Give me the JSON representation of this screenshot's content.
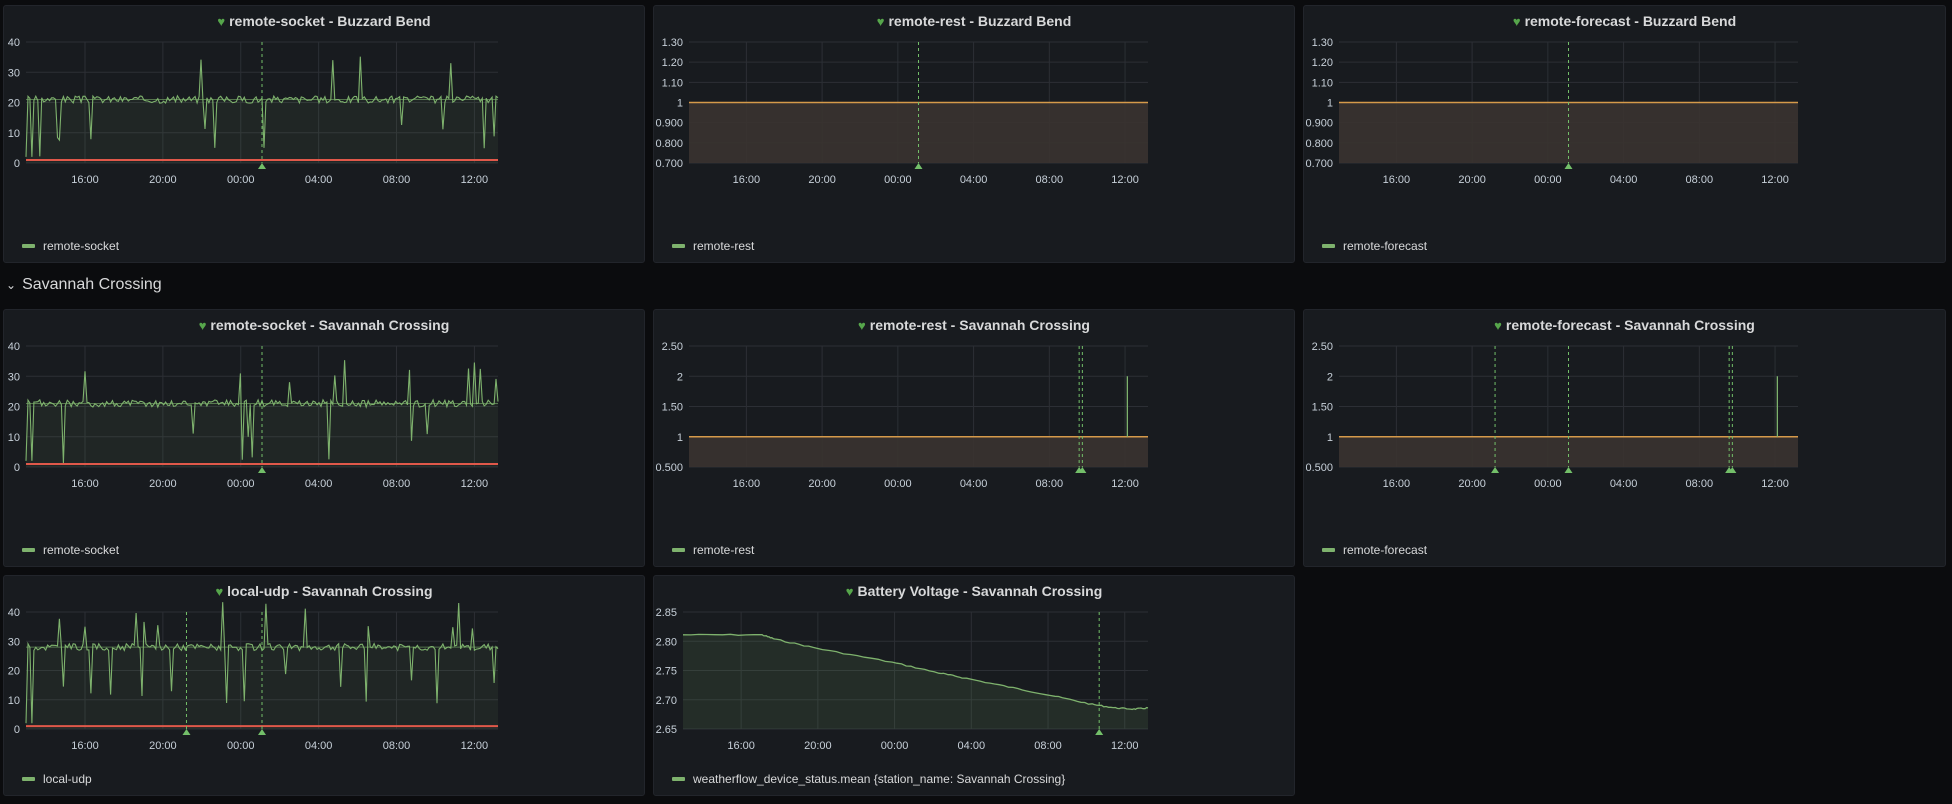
{
  "colors": {
    "series": "#7eb26d",
    "threshold_red": "#e0584a",
    "threshold_orange": "#d59a4a",
    "annotation": "#73bf69",
    "grid": "#2c2f35",
    "axis_text": "#c7d0d9"
  },
  "row": {
    "title": "Savannah Crossing"
  },
  "x_ticks": [
    "16:00",
    "20:00",
    "00:00",
    "04:00",
    "08:00",
    "12:00"
  ],
  "panels": [
    {
      "id": "p1",
      "title": "remote-socket - Buzzard Bend",
      "legend": "remote-socket",
      "chart_data": {
        "type": "line",
        "ylim": [
          0,
          40
        ],
        "yticks": [
          "0",
          "10",
          "20",
          "30",
          "40"
        ],
        "yvals": [
          0,
          10,
          20,
          30,
          40
        ],
        "baseline": 21,
        "threshold": 1,
        "pattern": "socket",
        "annotations": [
          0.5
        ]
      }
    },
    {
      "id": "p2",
      "title": "remote-rest - Buzzard Bend",
      "legend": "remote-rest",
      "chart_data": {
        "type": "line",
        "ylim": [
          0.7,
          1.3
        ],
        "yticks": [
          "0.700",
          "0.800",
          "0.900",
          "1",
          "1.10",
          "1.20",
          "1.30"
        ],
        "yvals": [
          0.7,
          0.8,
          0.9,
          1,
          1.1,
          1.2,
          1.3
        ],
        "baseline": 1,
        "pattern": "flat",
        "annotations": [
          0.5
        ]
      }
    },
    {
      "id": "p3",
      "title": "remote-forecast - Buzzard Bend",
      "legend": "remote-forecast",
      "chart_data": {
        "type": "line",
        "ylim": [
          0.7,
          1.3
        ],
        "yticks": [
          "0.700",
          "0.800",
          "0.900",
          "1",
          "1.10",
          "1.20",
          "1.30"
        ],
        "yvals": [
          0.7,
          0.8,
          0.9,
          1,
          1.1,
          1.2,
          1.3
        ],
        "baseline": 1,
        "pattern": "flat",
        "annotations": [
          0.5
        ]
      }
    },
    {
      "id": "p4",
      "title": "remote-socket - Savannah Crossing",
      "legend": "remote-socket",
      "chart_data": {
        "type": "line",
        "ylim": [
          0,
          40
        ],
        "yticks": [
          "0",
          "10",
          "20",
          "30",
          "40"
        ],
        "yvals": [
          0,
          10,
          20,
          30,
          40
        ],
        "baseline": 21,
        "threshold": 1,
        "pattern": "socket2",
        "annotations": [
          0.5
        ]
      }
    },
    {
      "id": "p5",
      "title": "remote-rest - Savannah Crossing",
      "legend": "remote-rest",
      "chart_data": {
        "type": "line",
        "ylim": [
          0.5,
          2.5
        ],
        "yticks": [
          "0.500",
          "1",
          "1.50",
          "2",
          "2.50"
        ],
        "yvals": [
          0.5,
          1,
          1.5,
          2,
          2.5
        ],
        "baseline": 1,
        "pattern": "spike",
        "spike": [
          0.955,
          2
        ],
        "annotations": [
          0.85,
          0.857
        ]
      }
    },
    {
      "id": "p6",
      "title": "remote-forecast - Savannah Crossing",
      "legend": "remote-forecast",
      "chart_data": {
        "type": "line",
        "ylim": [
          0.5,
          2.5
        ],
        "yticks": [
          "0.500",
          "1",
          "1.50",
          "2",
          "2.50"
        ],
        "yvals": [
          0.5,
          1,
          1.5,
          2,
          2.5
        ],
        "baseline": 1,
        "pattern": "spike",
        "spike": [
          0.955,
          2
        ],
        "annotations": [
          0.34,
          0.5,
          0.85,
          0.857
        ]
      }
    },
    {
      "id": "p7",
      "title": "local-udp - Savannah Crossing",
      "legend": "local-udp",
      "chart_data": {
        "type": "line",
        "ylim": [
          0,
          40
        ],
        "yticks": [
          "0",
          "10",
          "20",
          "30",
          "40"
        ],
        "yvals": [
          0,
          10,
          20,
          30,
          40
        ],
        "baseline": 28,
        "threshold": 1,
        "pattern": "udp",
        "annotations": [
          0.34,
          0.5
        ]
      }
    },
    {
      "id": "p8",
      "title": "Battery Voltage - Savannah Crossing",
      "legend": "weatherflow_device_status.mean {station_name: Savannah Crossing}",
      "chart_data": {
        "type": "line",
        "ylim": [
          2.65,
          2.85
        ],
        "yticks": [
          "2.65",
          "2.70",
          "2.75",
          "2.80",
          "2.85"
        ],
        "yvals": [
          2.65,
          2.7,
          2.75,
          2.8,
          2.85
        ],
        "pattern": "battery",
        "points": [
          [
            0,
            2.811
          ],
          [
            0.17,
            2.811
          ],
          [
            0.2,
            2.803
          ],
          [
            0.3,
            2.786
          ],
          [
            0.45,
            2.764
          ],
          [
            0.55,
            2.746
          ],
          [
            0.6,
            2.738
          ],
          [
            0.7,
            2.722
          ],
          [
            0.8,
            2.706
          ],
          [
            0.88,
            2.692
          ],
          [
            0.93,
            2.686
          ],
          [
            0.97,
            2.684
          ],
          [
            1,
            2.686
          ]
        ],
        "annotations": [
          0.895
        ]
      }
    }
  ]
}
